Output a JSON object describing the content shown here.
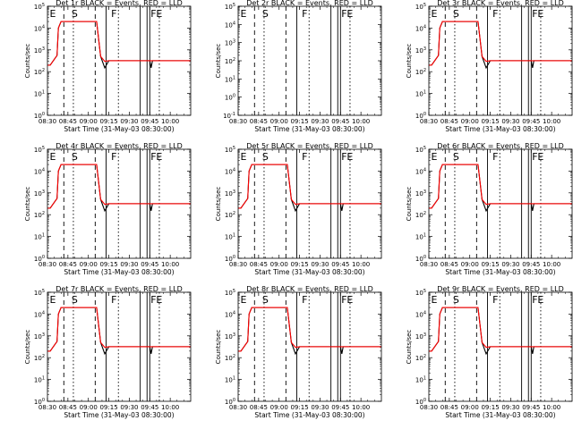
{
  "chart_data": [
    {
      "type": "line",
      "title": "Det 1r BLACK = Events, RED = LLD",
      "markers": [
        "E",
        "S",
        "F",
        "F",
        "E"
      ],
      "xlabel": "Start Time (31-May-03 08:30:00)",
      "ylabel": "Counts/sec",
      "xticks": [
        "08:30",
        "08:45",
        "09:00",
        "09:15",
        "09:30",
        "09:45",
        "10:00"
      ],
      "yticks": [
        "10^0",
        "10^1",
        "10^2",
        "10^3",
        "10^4",
        "10^5"
      ],
      "ylog": true,
      "ylim": [
        1,
        100000
      ],
      "has_data": true,
      "series": [
        {
          "name": "Events",
          "color": "#000000"
        },
        {
          "name": "LLD",
          "color": "#ff0000"
        }
      ],
      "x": [
        "08:30",
        "08:32",
        "08:37",
        "08:38",
        "08:40",
        "09:05",
        "09:06",
        "09:09",
        "09:12",
        "09:15",
        "09:30",
        "09:45",
        "09:46",
        "09:47",
        "09:48",
        "10:00",
        "10:15"
      ],
      "events": [
        200,
        200,
        550,
        10000,
        20000,
        20000,
        20000,
        500,
        150,
        320,
        320,
        320,
        150,
        320,
        320,
        320,
        320
      ],
      "lld": [
        200,
        200,
        550,
        10000,
        20000,
        20000,
        20000,
        500,
        300,
        320,
        320,
        320,
        320,
        320,
        320,
        320,
        320
      ]
    },
    {
      "type": "line",
      "title": "Det 2r BLACK = Events, RED = LLD",
      "markers": [
        "E",
        "S",
        "F",
        "F",
        "E"
      ],
      "xlabel": "Start Time (31-May-03 08:30:00)",
      "ylabel": "Counts/sec",
      "xticks": [
        "08:30",
        "08:45",
        "09:00",
        "09:15",
        "09:30",
        "09:45",
        "10:00"
      ],
      "yticks": [
        "10^-1",
        "10^0",
        "10^1",
        "10^2",
        "10^3",
        "10^4",
        "10^5"
      ],
      "ylog": true,
      "ylim": [
        0.1,
        100000
      ],
      "has_data": false
    },
    {
      "type": "line",
      "title": "Det 3r BLACK = Events, RED = LLD",
      "markers": [
        "E",
        "S",
        "F",
        "F",
        "E"
      ],
      "xlabel": "Start Time (31-May-03 08:30:00)",
      "ylabel": "Counts/sec",
      "xticks": [
        "08:30",
        "08:45",
        "09:00",
        "09:15",
        "09:30",
        "09:45",
        "10:00"
      ],
      "yticks": [
        "10^0",
        "10^1",
        "10^2",
        "10^3",
        "10^4",
        "10^5"
      ],
      "ylog": true,
      "ylim": [
        1,
        100000
      ],
      "has_data": true,
      "series": [
        {
          "name": "Events",
          "color": "#000000"
        },
        {
          "name": "LLD",
          "color": "#ff0000"
        }
      ],
      "x": [
        "08:30",
        "08:32",
        "08:37",
        "08:38",
        "08:40",
        "09:05",
        "09:06",
        "09:09",
        "09:12",
        "09:15",
        "09:30",
        "09:45",
        "09:46",
        "09:47",
        "09:48",
        "10:00",
        "10:15"
      ],
      "events": [
        200,
        200,
        550,
        10000,
        20000,
        20000,
        20000,
        500,
        150,
        320,
        320,
        320,
        150,
        320,
        320,
        320,
        320
      ],
      "lld": [
        200,
        200,
        550,
        10000,
        20000,
        20000,
        20000,
        500,
        300,
        320,
        320,
        320,
        320,
        320,
        320,
        320,
        320
      ]
    },
    {
      "type": "line",
      "title": "Det 4r BLACK = Events, RED = LLD",
      "markers": [
        "E",
        "S",
        "F",
        "F",
        "E"
      ],
      "xlabel": "Start Time (31-May-03 08:30:00)",
      "ylabel": "Counts/sec",
      "xticks": [
        "08:30",
        "08:45",
        "09:00",
        "09:15",
        "09:30",
        "09:45",
        "10:00"
      ],
      "yticks": [
        "10^0",
        "10^1",
        "10^2",
        "10^3",
        "10^4",
        "10^5"
      ],
      "ylog": true,
      "ylim": [
        1,
        100000
      ],
      "has_data": true,
      "series": [
        {
          "name": "Events",
          "color": "#000000"
        },
        {
          "name": "LLD",
          "color": "#ff0000"
        }
      ],
      "x": [
        "08:30",
        "08:32",
        "08:37",
        "08:38",
        "08:40",
        "09:05",
        "09:06",
        "09:09",
        "09:12",
        "09:15",
        "09:30",
        "09:45",
        "09:46",
        "09:47",
        "09:48",
        "10:00",
        "10:15"
      ],
      "events": [
        200,
        200,
        550,
        10000,
        20000,
        20000,
        20000,
        500,
        150,
        320,
        320,
        320,
        150,
        320,
        320,
        320,
        320
      ],
      "lld": [
        200,
        200,
        550,
        10000,
        20000,
        20000,
        20000,
        500,
        300,
        320,
        320,
        320,
        320,
        320,
        320,
        320,
        320
      ]
    },
    {
      "type": "line",
      "title": "Det 5r BLACK = Events, RED = LLD",
      "markers": [
        "E",
        "S",
        "F",
        "F",
        "E"
      ],
      "xlabel": "Start Time (31-May-03 08:30:00)",
      "ylabel": "Counts/sec",
      "xticks": [
        "08:30",
        "08:45",
        "09:00",
        "09:15",
        "09:30",
        "09:45",
        "10:00"
      ],
      "yticks": [
        "10^0",
        "10^1",
        "10^2",
        "10^3",
        "10^4",
        "10^5"
      ],
      "ylog": true,
      "ylim": [
        1,
        100000
      ],
      "has_data": true,
      "series": [
        {
          "name": "Events",
          "color": "#000000"
        },
        {
          "name": "LLD",
          "color": "#ff0000"
        }
      ],
      "x": [
        "08:30",
        "08:32",
        "08:37",
        "08:38",
        "08:40",
        "09:05",
        "09:06",
        "09:09",
        "09:12",
        "09:15",
        "09:30",
        "09:45",
        "09:46",
        "09:47",
        "09:48",
        "10:00",
        "10:15"
      ],
      "events": [
        200,
        200,
        550,
        10000,
        20000,
        20000,
        20000,
        500,
        150,
        320,
        320,
        320,
        150,
        320,
        320,
        320,
        320
      ],
      "lld": [
        200,
        200,
        550,
        10000,
        20000,
        20000,
        20000,
        500,
        300,
        320,
        320,
        320,
        320,
        320,
        320,
        320,
        320
      ]
    },
    {
      "type": "line",
      "title": "Det 6r BLACK = Events, RED = LLD",
      "markers": [
        "E",
        "S",
        "F",
        "F",
        "E"
      ],
      "xlabel": "Start Time (31-May-03 08:30:00)",
      "ylabel": "Counts/sec",
      "xticks": [
        "08:30",
        "08:45",
        "09:00",
        "09:15",
        "09:30",
        "09:45",
        "10:00"
      ],
      "yticks": [
        "10^0",
        "10^1",
        "10^2",
        "10^3",
        "10^4",
        "10^5"
      ],
      "ylog": true,
      "ylim": [
        1,
        100000
      ],
      "has_data": true,
      "series": [
        {
          "name": "Events",
          "color": "#000000"
        },
        {
          "name": "LLD",
          "color": "#ff0000"
        }
      ],
      "x": [
        "08:30",
        "08:32",
        "08:37",
        "08:38",
        "08:40",
        "09:05",
        "09:06",
        "09:09",
        "09:12",
        "09:15",
        "09:30",
        "09:45",
        "09:46",
        "09:47",
        "09:48",
        "10:00",
        "10:15"
      ],
      "events": [
        200,
        200,
        550,
        10000,
        20000,
        20000,
        20000,
        500,
        150,
        320,
        320,
        320,
        150,
        320,
        320,
        320,
        320
      ],
      "lld": [
        200,
        200,
        550,
        10000,
        20000,
        20000,
        20000,
        500,
        300,
        320,
        320,
        320,
        320,
        320,
        320,
        320,
        320
      ]
    },
    {
      "type": "line",
      "title": "Det 7r BLACK = Events, RED = LLD",
      "markers": [
        "E",
        "S",
        "F",
        "F",
        "E"
      ],
      "xlabel": "Start Time (31-May-03 08:30:00)",
      "ylabel": "Counts/sec",
      "xticks": [
        "08:30",
        "08:45",
        "09:00",
        "09:15",
        "09:30",
        "09:45",
        "10:00"
      ],
      "yticks": [
        "10^0",
        "10^1",
        "10^2",
        "10^3",
        "10^4",
        "10^5"
      ],
      "ylog": true,
      "ylim": [
        1,
        100000
      ],
      "has_data": true,
      "series": [
        {
          "name": "Events",
          "color": "#000000"
        },
        {
          "name": "LLD",
          "color": "#ff0000"
        }
      ],
      "x": [
        "08:30",
        "08:32",
        "08:37",
        "08:38",
        "08:40",
        "09:05",
        "09:06",
        "09:09",
        "09:12",
        "09:15",
        "09:30",
        "09:45",
        "09:46",
        "09:47",
        "09:48",
        "10:00",
        "10:15"
      ],
      "events": [
        200,
        200,
        550,
        10000,
        20000,
        20000,
        20000,
        500,
        150,
        320,
        320,
        320,
        150,
        320,
        320,
        320,
        320
      ],
      "lld": [
        200,
        200,
        550,
        10000,
        20000,
        20000,
        20000,
        500,
        300,
        320,
        320,
        320,
        320,
        320,
        320,
        320,
        320
      ]
    },
    {
      "type": "line",
      "title": "Det 8r BLACK = Events, RED = LLD",
      "markers": [
        "E",
        "S",
        "F",
        "F",
        "E"
      ],
      "xlabel": "Start Time (31-May-03 08:30:00)",
      "ylabel": "Counts/sec",
      "xticks": [
        "08:30",
        "08:45",
        "09:00",
        "09:15",
        "09:30",
        "09:45",
        "10:00"
      ],
      "yticks": [
        "10^0",
        "10^1",
        "10^2",
        "10^3",
        "10^4",
        "10^5"
      ],
      "ylog": true,
      "ylim": [
        1,
        100000
      ],
      "has_data": true,
      "series": [
        {
          "name": "Events",
          "color": "#000000"
        },
        {
          "name": "LLD",
          "color": "#ff0000"
        }
      ],
      "x": [
        "08:30",
        "08:32",
        "08:37",
        "08:38",
        "08:40",
        "09:05",
        "09:06",
        "09:09",
        "09:12",
        "09:15",
        "09:30",
        "09:45",
        "09:46",
        "09:47",
        "09:48",
        "10:00",
        "10:15"
      ],
      "events": [
        200,
        200,
        550,
        10000,
        20000,
        20000,
        20000,
        500,
        150,
        320,
        320,
        320,
        150,
        320,
        320,
        320,
        320
      ],
      "lld": [
        200,
        200,
        550,
        10000,
        20000,
        20000,
        20000,
        500,
        300,
        320,
        320,
        320,
        320,
        320,
        320,
        320,
        320
      ]
    },
    {
      "type": "line",
      "title": "Det 9r BLACK = Events, RED = LLD",
      "markers": [
        "E",
        "S",
        "F",
        "F",
        "E"
      ],
      "xlabel": "Start Time (31-May-03 08:30:00)",
      "ylabel": "Counts/sec",
      "xticks": [
        "08:30",
        "08:45",
        "09:00",
        "09:15",
        "09:30",
        "09:45",
        "10:00"
      ],
      "yticks": [
        "10^0",
        "10^1",
        "10^2",
        "10^3",
        "10^4",
        "10^5"
      ],
      "ylog": true,
      "ylim": [
        1,
        100000
      ],
      "has_data": true,
      "series": [
        {
          "name": "Events",
          "color": "#000000"
        },
        {
          "name": "LLD",
          "color": "#ff0000"
        }
      ],
      "x": [
        "08:30",
        "08:32",
        "08:37",
        "08:38",
        "08:40",
        "09:05",
        "09:06",
        "09:09",
        "09:12",
        "09:15",
        "09:30",
        "09:45",
        "09:46",
        "09:47",
        "09:48",
        "10:00",
        "10:15"
      ],
      "events": [
        200,
        200,
        550,
        10000,
        20000,
        20000,
        20000,
        500,
        150,
        320,
        320,
        320,
        150,
        320,
        320,
        320,
        320
      ],
      "lld": [
        200,
        200,
        550,
        10000,
        20000,
        20000,
        20000,
        500,
        300,
        320,
        320,
        320,
        320,
        320,
        320,
        320,
        320
      ]
    }
  ],
  "overlay_lines": [
    {
      "time": "08:42",
      "style": "dashed"
    },
    {
      "time": "08:49",
      "style": "dotted"
    },
    {
      "time": "09:05",
      "style": "dashed"
    },
    {
      "time": "09:13",
      "style": "solid"
    },
    {
      "time": "09:22",
      "style": "dotted"
    },
    {
      "time": "09:38",
      "style": "solid"
    },
    {
      "time": "09:43",
      "style": "solid"
    },
    {
      "time": "09:45",
      "style": "solid"
    },
    {
      "time": "09:52",
      "style": "dotted"
    }
  ],
  "x_range": [
    "08:30",
    "10:15"
  ]
}
